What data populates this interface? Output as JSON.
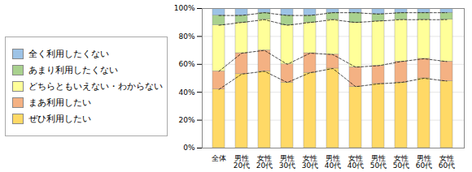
{
  "chart_data": {
    "type": "bar",
    "stacked": true,
    "grid": true,
    "legend": "left",
    "categories": [
      "全体",
      "男性\n20代",
      "女性\n20代",
      "男性\n30代",
      "女性\n30代",
      "男性\n40代",
      "女性\n40代",
      "男性\n50代",
      "女性\n50代",
      "男性\n60代",
      "女性\n60代"
    ],
    "series": [
      {
        "name": "ぜひ利用したい",
        "color": "#ffd966",
        "values": [
          42,
          53,
          55,
          47,
          54,
          57,
          44,
          46,
          47,
          50,
          48
        ]
      },
      {
        "name": "まあ利用したい",
        "color": "#f4b183",
        "values": [
          13,
          15,
          15,
          13,
          14,
          10,
          14,
          13,
          15,
          14,
          14
        ]
      },
      {
        "name": "どちらともいえない・わからない",
        "color": "#ffff99",
        "values": [
          33,
          22,
          22,
          28,
          22,
          25,
          32,
          32,
          30,
          28,
          30
        ]
      },
      {
        "name": "あまり利用したくない",
        "color": "#a9d18e",
        "values": [
          7,
          5,
          5,
          7,
          5,
          5,
          7,
          5,
          5,
          5,
          5
        ]
      },
      {
        "name": "全く利用したくない",
        "color": "#9dc3e6",
        "values": [
          5,
          5,
          3,
          5,
          5,
          3,
          3,
          4,
          3,
          3,
          3
        ]
      }
    ],
    "ylim": [
      0,
      100
    ],
    "yticks": [
      {
        "value": 0,
        "label": "0%"
      },
      {
        "value": 20,
        "label": "20%"
      },
      {
        "value": 40,
        "label": "40%"
      },
      {
        "value": 60,
        "label": "60%"
      },
      {
        "value": 80,
        "label": "80%"
      },
      {
        "value": 100,
        "label": "100%"
      }
    ]
  }
}
